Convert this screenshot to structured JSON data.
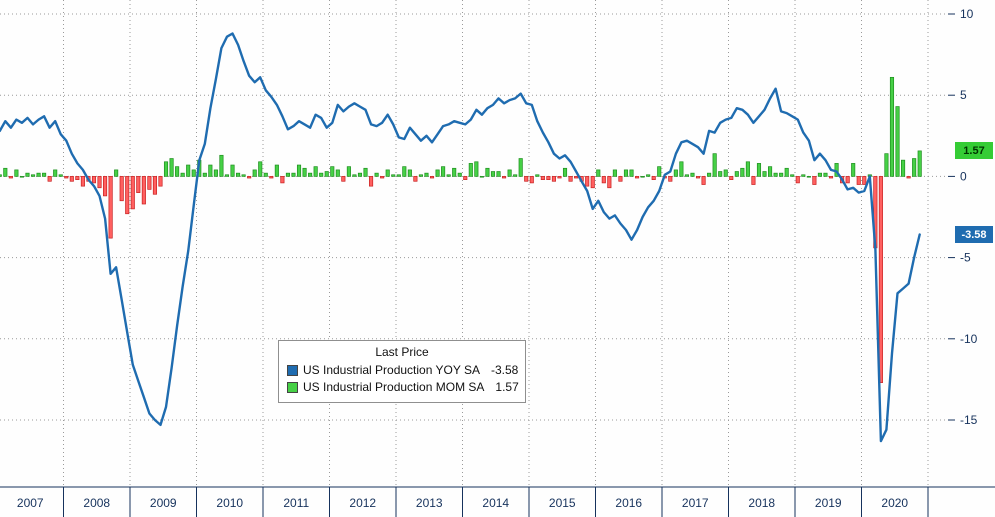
{
  "colors": {
    "line": "#1f6cb0",
    "bar_pos_fill": "#46d046",
    "bar_pos_border": "#1e8f1e",
    "bar_neg_fill": "#ff6060",
    "bar_neg_border": "#c82020",
    "axis_text": "#16325c",
    "grid": "#9a9a9a",
    "badge_mom_bg": "#35cc35",
    "badge_yoy_bg": "#1f6cb0"
  },
  "legend": {
    "title": "Last Price",
    "series": [
      {
        "label": "US Industrial Production YOY SA",
        "value": "-3.58",
        "color": "#1f6cb0"
      },
      {
        "label": "US Industrial Production MOM SA",
        "value": "1.57",
        "color": "#46d046"
      }
    ]
  },
  "y_axis": {
    "ticks": [
      "10",
      "5",
      "0",
      "-5",
      "-10",
      "-15"
    ],
    "tick_values": [
      10,
      5,
      0,
      -5,
      -10,
      -15
    ],
    "badges": [
      {
        "text": "1.57",
        "value": 1.57,
        "series": "mom"
      },
      {
        "text": "-3.58",
        "value": -3.58,
        "series": "yoy"
      }
    ]
  },
  "x_axis": {
    "years": [
      "2007",
      "2008",
      "2009",
      "2010",
      "2011",
      "2012",
      "2013",
      "2014",
      "2015",
      "2016",
      "2017",
      "2018",
      "2019",
      "2020"
    ]
  },
  "chart_data": {
    "type": "line+bar",
    "x_start": "2007-01",
    "x_end": "2020-11",
    "months_per_year": 12,
    "ylim": [
      -19,
      11
    ],
    "grid": "dotted",
    "legend_position": "center-left-box",
    "series": [
      {
        "name": "US Industrial Production YOY SA",
        "type": "line",
        "last_value": -3.58,
        "values": [
          2.8,
          3.4,
          3.0,
          3.5,
          3.3,
          3.6,
          3.2,
          3.5,
          3.7,
          3.0,
          3.4,
          2.6,
          2.2,
          1.4,
          0.8,
          0.4,
          -0.2,
          -0.6,
          -1.2,
          -2.6,
          -6.0,
          -5.6,
          -7.6,
          -9.6,
          -11.6,
          -12.6,
          -13.6,
          -14.6,
          -15.0,
          -15.3,
          -14.2,
          -11.8,
          -9.2,
          -6.8,
          -4.6,
          -1.8,
          1.0,
          2.0,
          4.2,
          6.0,
          7.9,
          8.6,
          8.8,
          8.1,
          7.1,
          6.2,
          5.8,
          6.1,
          5.3,
          4.9,
          4.4,
          3.7,
          2.9,
          3.1,
          3.4,
          3.2,
          3.0,
          3.8,
          3.6,
          3.0,
          3.3,
          4.4,
          4.0,
          4.3,
          4.5,
          4.3,
          4.1,
          3.2,
          3.1,
          3.3,
          3.8,
          3.2,
          2.4,
          2.3,
          3.0,
          2.6,
          2.2,
          2.5,
          2.1,
          2.6,
          3.1,
          3.2,
          3.4,
          3.3,
          3.2,
          3.5,
          4.1,
          3.8,
          4.2,
          4.4,
          4.8,
          4.5,
          4.7,
          4.8,
          5.1,
          4.5,
          4.4,
          3.4,
          2.7,
          2.1,
          1.4,
          1.1,
          1.3,
          0.9,
          0.3,
          -0.3,
          -0.9,
          -2.0,
          -1.5,
          -2.2,
          -2.6,
          -2.4,
          -2.9,
          -3.3,
          -3.9,
          -3.3,
          -2.5,
          -1.9,
          -1.5,
          -0.9,
          0.1,
          0.3,
          1.4,
          2.1,
          2.2,
          2.0,
          1.8,
          1.4,
          2.8,
          2.7,
          3.3,
          3.5,
          3.6,
          4.2,
          4.1,
          3.8,
          3.3,
          3.7,
          4.1,
          4.8,
          5.4,
          4.0,
          3.9,
          3.7,
          3.5,
          2.7,
          2.2,
          1.0,
          1.4,
          1.0,
          0.4,
          0.3,
          -0.2,
          -0.8,
          -0.7,
          -1.0,
          -0.9,
          0.0,
          -4.5,
          -16.3,
          -15.6,
          -10.9,
          -7.2,
          -6.9,
          -6.6,
          -5.0,
          -3.58
        ]
      },
      {
        "name": "US Industrial Production MOM SA",
        "type": "bar",
        "last_value": 1.57,
        "values": [
          0.1,
          0.5,
          -0.1,
          0.4,
          0.0,
          0.2,
          0.1,
          0.2,
          0.2,
          -0.3,
          0.4,
          0.1,
          -0.1,
          -0.3,
          -0.2,
          -0.6,
          -0.3,
          -0.4,
          -0.7,
          -1.2,
          -3.8,
          0.4,
          -1.5,
          -2.3,
          -2.0,
          -1.0,
          -1.7,
          -0.8,
          -1.1,
          -0.6,
          0.9,
          1.1,
          0.6,
          0.2,
          0.7,
          0.4,
          1.0,
          0.2,
          0.7,
          0.4,
          1.3,
          0.1,
          0.7,
          0.2,
          0.1,
          -0.1,
          0.4,
          0.9,
          0.2,
          -0.1,
          0.7,
          -0.4,
          0.2,
          0.2,
          0.7,
          0.5,
          0.2,
          0.6,
          0.2,
          0.3,
          0.6,
          0.4,
          -0.3,
          0.6,
          0.1,
          0.2,
          0.5,
          -0.6,
          0.2,
          -0.1,
          0.4,
          0.1,
          0.1,
          0.6,
          0.4,
          -0.3,
          0.1,
          0.2,
          -0.1,
          0.4,
          0.6,
          0.1,
          0.5,
          0.2,
          -0.2,
          0.8,
          0.9,
          0.0,
          0.5,
          0.3,
          0.3,
          -0.1,
          0.4,
          0.1,
          1.1,
          -0.3,
          -0.4,
          0.1,
          -0.2,
          -0.2,
          -0.3,
          -0.1,
          0.5,
          -0.3,
          -0.1,
          -0.3,
          -0.6,
          -0.7,
          0.4,
          -0.4,
          -0.7,
          0.4,
          -0.3,
          0.4,
          0.4,
          -0.1,
          0.0,
          0.1,
          -0.2,
          0.6,
          -0.1,
          -0.3,
          0.4,
          0.9,
          0.1,
          0.2,
          -0.1,
          -0.5,
          0.2,
          1.4,
          0.3,
          0.4,
          -0.2,
          0.3,
          0.5,
          0.9,
          -0.5,
          0.8,
          0.3,
          0.6,
          0.2,
          0.2,
          0.5,
          0.1,
          -0.4,
          0.1,
          0.0,
          -0.5,
          0.2,
          0.2,
          -0.1,
          0.8,
          -0.4,
          -0.4,
          0.8,
          -0.5,
          -0.5,
          0.1,
          -4.4,
          -12.7,
          1.4,
          6.1,
          4.3,
          1.0,
          -0.1,
          1.1,
          1.57
        ]
      }
    ]
  }
}
